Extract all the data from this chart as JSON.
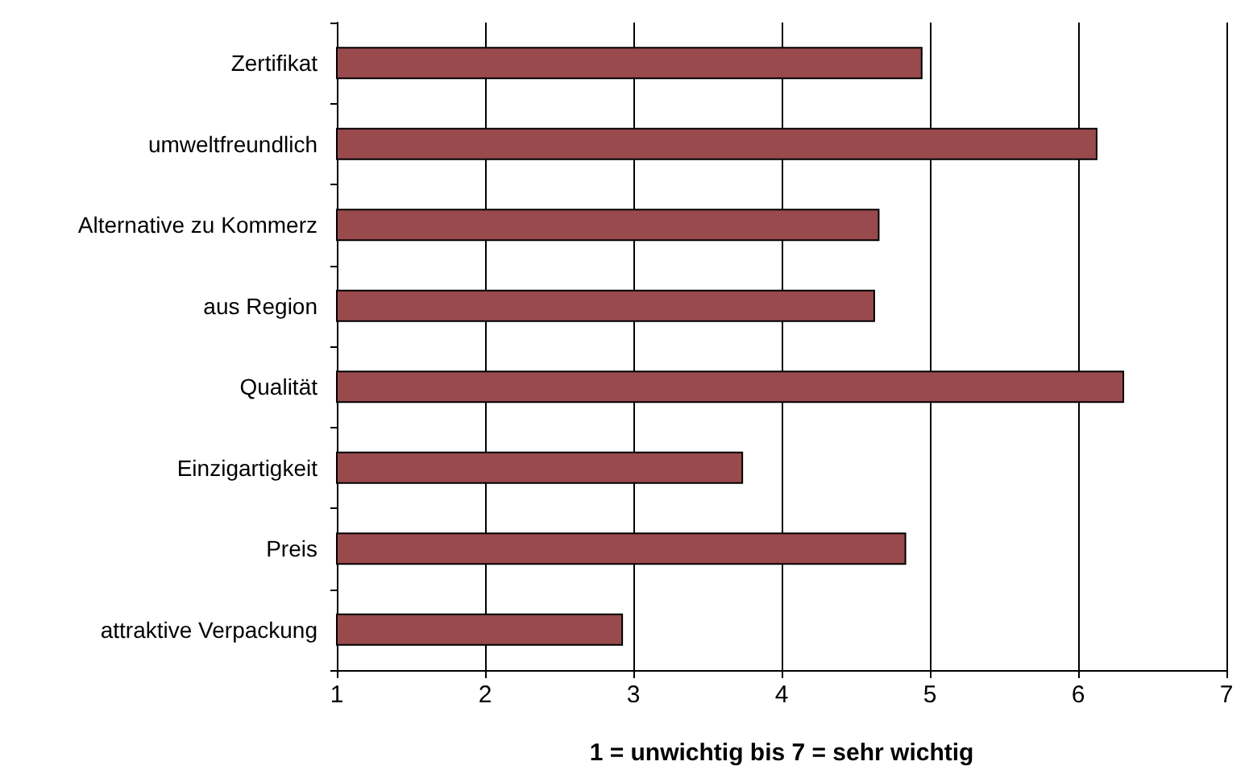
{
  "chart_data": {
    "type": "bar",
    "orientation": "horizontal",
    "xlabel": "1 = unwichtig bis 7 = sehr wichtig",
    "categories": [
      "Zertifikat",
      "umweltfreundlich",
      "Alternative zu Kommerz",
      "aus Region",
      "Qualität",
      "Einzigartigkeit",
      "Preis",
      "attraktive Verpackung"
    ],
    "values": [
      4.95,
      6.13,
      4.66,
      4.63,
      6.31,
      3.74,
      4.84,
      2.93
    ],
    "color": "#994a4d",
    "xlim": [
      1,
      7
    ],
    "xticks": [
      1,
      2,
      3,
      4,
      5,
      6,
      7
    ],
    "grid": "x"
  }
}
